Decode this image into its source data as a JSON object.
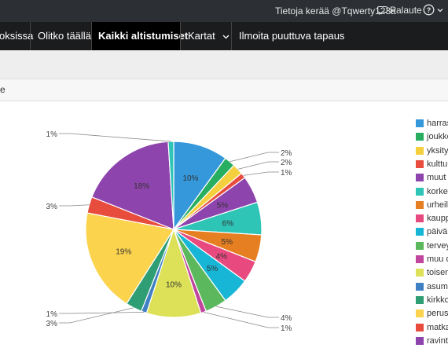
{
  "topbar": {
    "credit": "Tietoja kerää @Tqwerty123a",
    "feedback": "Palaute",
    "help_icon": "question-circle-icon",
    "feedback_icon": "speech-bubble-icon"
  },
  "nav": {
    "items": [
      {
        "label": "oksissa",
        "active": false
      },
      {
        "label": "Olitko täällä",
        "active": false
      },
      {
        "label": "Kaikki altistumiset",
        "active": true
      },
      {
        "label": "Kartat",
        "active": false,
        "dropdown": true
      },
      {
        "label": "Ilmoita puuttuva tapaus",
        "active": false
      }
    ]
  },
  "panel": {
    "heading": "e"
  },
  "chart_data": {
    "type": "pie",
    "slices": [
      {
        "label": "harrast",
        "value": 10,
        "display": "10%",
        "color": "#3498db"
      },
      {
        "label": "joukko",
        "value": 2,
        "display": "2%",
        "color": "#27ae60"
      },
      {
        "label": "yksityis",
        "value": 2,
        "display": "2%",
        "color": "#f4d03f"
      },
      {
        "label": "kulttuu",
        "value": 1,
        "display": "1%",
        "color": "#e74c3c"
      },
      {
        "label": "muut",
        "value": 5,
        "display": "5%",
        "color": "#8e44ad"
      },
      {
        "label": "korkea",
        "value": 6,
        "display": "6%",
        "color": "#2ec4b6"
      },
      {
        "label": "urheilu",
        "value": 5,
        "display": "5%",
        "color": "#e67e22"
      },
      {
        "label": "kauppa",
        "value": 4,
        "display": "4%",
        "color": "#e84a7f"
      },
      {
        "label": "päiväko",
        "value": 5,
        "display": "5%",
        "color": "#17b6d6"
      },
      {
        "label": "terveyd",
        "value": 4,
        "display": "4%",
        "color": "#5cb85c"
      },
      {
        "label": "muu o",
        "value": 1,
        "display": "1%",
        "color": "#c2459d"
      },
      {
        "label": "toisen",
        "value": 10,
        "display": "10%",
        "color": "#dce157"
      },
      {
        "label": "asumis",
        "value": 1,
        "display": "1%",
        "color": "#3f80c4"
      },
      {
        "label": "kirkko",
        "value": 3,
        "display": "3%",
        "color": "#2f9e74"
      },
      {
        "label": "perusk",
        "value": 19,
        "display": "19%",
        "color": "#fcd34d"
      },
      {
        "label": "matkai",
        "value": 3,
        "display": "3%",
        "color": "#e74c3c"
      },
      {
        "label": "ravinto",
        "value": 18,
        "display": "18%",
        "color": "#8e44ad"
      },
      {
        "label": "",
        "value": 1,
        "display": "1%",
        "color": "#2ec4b6"
      }
    ],
    "legend_placement": "right"
  }
}
